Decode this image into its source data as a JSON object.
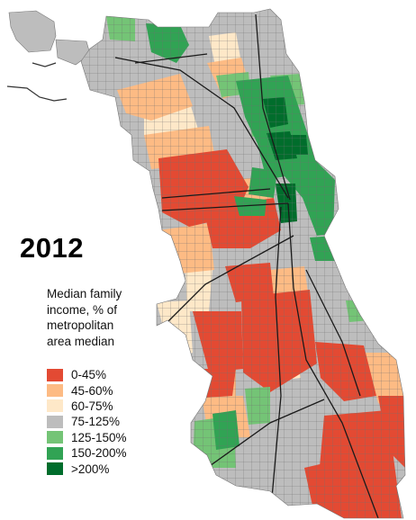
{
  "map": {
    "year": "2012",
    "title_lines": [
      "Median family",
      "income, % of",
      "metropolitan",
      "area median"
    ],
    "legend": [
      {
        "label": "0-45%",
        "color": "#e34a33"
      },
      {
        "label": "45-60%",
        "color": "#fdbb84"
      },
      {
        "label": "60-75%",
        "color": "#fee8c8"
      },
      {
        "label": "75-125%",
        "color": "#bdbdbd"
      },
      {
        "label": "125-150%",
        "color": "#74c476"
      },
      {
        "label": "150-200%",
        "color": "#31a354"
      },
      {
        "label": ">200%",
        "color": "#006d2c"
      }
    ]
  }
}
